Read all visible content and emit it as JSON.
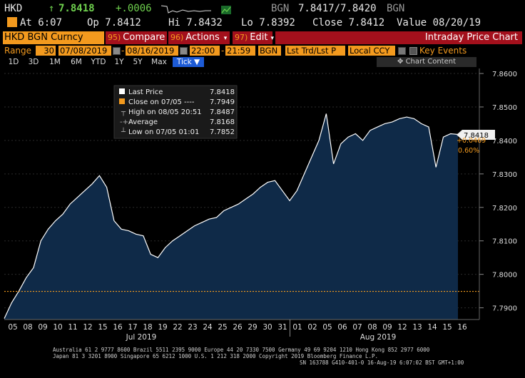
{
  "quote": {
    "ticker": "HKD",
    "last": "7.8418",
    "change": "+.0006",
    "source_label": "BGN",
    "bid_ask": "7.8417/7.8420",
    "source_label_2": "BGN",
    "time": "At 6:07",
    "open": "Op 7.8412",
    "high": "Hi 7.8432",
    "low": "Lo 7.8392",
    "close": "Close 7.8412",
    "value_date": "Value 08/20/19"
  },
  "header": {
    "ticker_label": "HKD BGN Curncy",
    "compare_num": "95)",
    "compare_label": "Compare",
    "actions_num": "96)",
    "actions_label": "Actions",
    "edit_num": "97)",
    "edit_label": "Edit",
    "title": "Intraday Price Chart"
  },
  "range": {
    "label": "Range",
    "days": "30",
    "start_date": "07/08/2019",
    "end_date": "08/16/2019",
    "start_time": "22:00",
    "end_time": "21:59",
    "source": "BGN",
    "price_type": "Lst Trd/Lst P",
    "currency": "Local CCY",
    "key_events": "Key Events"
  },
  "tabs": [
    "1D",
    "3D",
    "1M",
    "6M",
    "YTD",
    "1Y",
    "5Y",
    "Max"
  ],
  "tick_label": "Tick ▼",
  "chart_content_label": "Chart Content",
  "legend": {
    "last_price": "Last Price",
    "last_price_val": "7.8418",
    "close_label": "Close on 07/05 ---- ",
    "close_val": "7.7949",
    "high_label": "High on 08/05 20:51",
    "high_val": "7.8487",
    "avg_label": "Average",
    "avg_val": "7.8168",
    "low_label": "Low on 07/05 01:01",
    "low_val": "7.7852"
  },
  "price_tag": "7.8418",
  "change_pct": "+0.0469",
  "change_pct2": "0.60%",
  "colors": {
    "accent": "#f39a1e",
    "menu_red": "#a3101c",
    "area_fill": "#0f2a48",
    "line": "#ffffff",
    "tab_blue": "#1d5bd6"
  },
  "chart_data": {
    "type": "area",
    "ylim": [
      7.7865,
      7.8615
    ],
    "y_ticks": [
      "7.8600",
      "7.8500",
      "7.8400",
      "7.8300",
      "7.8200",
      "7.8100",
      "7.8000",
      "7.7900"
    ],
    "y_tick_values": [
      7.86,
      7.85,
      7.84,
      7.83,
      7.82,
      7.81,
      7.8,
      7.79
    ],
    "x_ticks": [
      "05",
      "08",
      "09",
      "10",
      "11",
      "12",
      "15",
      "16",
      "17",
      "18",
      "19",
      "22",
      "23",
      "24",
      "25",
      "26",
      "29",
      "30",
      "31",
      "01",
      "02",
      "05",
      "06",
      "07",
      "08",
      "09",
      "12",
      "13",
      "14",
      "15",
      "16"
    ],
    "month_labels": [
      "Jul 2019",
      "Aug 2019"
    ],
    "reference_line": 7.7949,
    "x": [
      0,
      1,
      2,
      3,
      4,
      5,
      6,
      7,
      8,
      9,
      10,
      11,
      12,
      13,
      14,
      15,
      16,
      17,
      18,
      19,
      20,
      21,
      22,
      23,
      24,
      25,
      26,
      27,
      28,
      29,
      30,
      31,
      32,
      33,
      34,
      35,
      36,
      37,
      38,
      39,
      40,
      41,
      42,
      43,
      44,
      45,
      46,
      47,
      48,
      49,
      50,
      51,
      52,
      53,
      54,
      55,
      56,
      57,
      58,
      59,
      60,
      61,
      62
    ],
    "values": [
      7.7868,
      7.7915,
      7.795,
      7.799,
      7.802,
      7.81,
      7.8135,
      7.816,
      7.818,
      7.821,
      7.823,
      7.825,
      7.827,
      7.8295,
      7.826,
      7.816,
      7.8135,
      7.813,
      7.812,
      7.8115,
      7.806,
      7.805,
      7.808,
      7.81,
      7.8115,
      7.813,
      7.8145,
      7.8155,
      7.8165,
      7.817,
      7.819,
      7.82,
      7.821,
      7.8225,
      7.824,
      7.826,
      7.8275,
      7.828,
      7.825,
      7.822,
      7.825,
      7.83,
      7.835,
      7.84,
      7.848,
      7.833,
      7.839,
      7.841,
      7.842,
      7.84,
      7.843,
      7.844,
      7.845,
      7.8455,
      7.8465,
      7.847,
      7.8465,
      7.845,
      7.844,
      7.832,
      7.841,
      7.842,
      7.8418
    ]
  }
}
